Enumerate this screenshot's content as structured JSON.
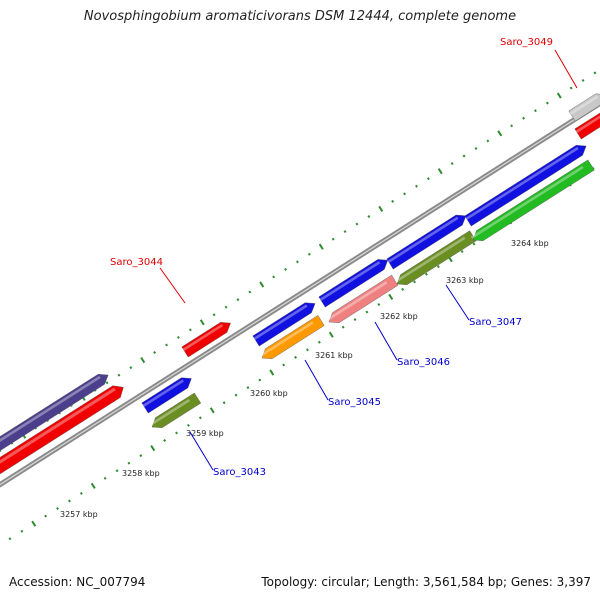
{
  "title": "Novosphingobium aromaticivorans DSM 12444, complete genome",
  "footer": {
    "accession": "Accession: NC_007794",
    "stats": "Topology: circular; Length: 3,561,584 bp; Genes: 3,397"
  },
  "colors": {
    "backbone": "#8a8a8a",
    "tick": "#2e8b2e",
    "label_red": "#e00000",
    "label_blue": "#0000cc",
    "gene_blue": "#1010e0",
    "gene_red": "#f00000",
    "gene_navy": "#4b3f8c",
    "gene_olive": "#6b8e23",
    "gene_orange": "#ff9900",
    "gene_pink": "#f08080",
    "gene_green": "#22bb22",
    "gene_gray": "#c8c8c8"
  },
  "scale_labels": [
    {
      "text": "3257 kbp"
    },
    {
      "text": "3258 kbp"
    },
    {
      "text": "3259 kbp"
    },
    {
      "text": "3260 kbp"
    },
    {
      "text": "3261 kbp"
    },
    {
      "text": "3262 kbp"
    },
    {
      "text": "3263 kbp"
    },
    {
      "text": "3264 kbp"
    }
  ],
  "gene_labels": [
    {
      "name": "saro-3049-label",
      "text": "Saro_3049",
      "color": "label_red"
    },
    {
      "name": "saro-3044-label",
      "text": "Saro_3044",
      "color": "label_red"
    },
    {
      "name": "saro-3047-label",
      "text": "Saro_3047",
      "color": "label_blue"
    },
    {
      "name": "saro-3046-label",
      "text": "Saro_3046",
      "color": "label_blue"
    },
    {
      "name": "saro-3045-label",
      "text": "Saro_3045",
      "color": "label_blue"
    },
    {
      "name": "saro-3043-label",
      "text": "Saro_3043",
      "color": "label_blue"
    }
  ]
}
